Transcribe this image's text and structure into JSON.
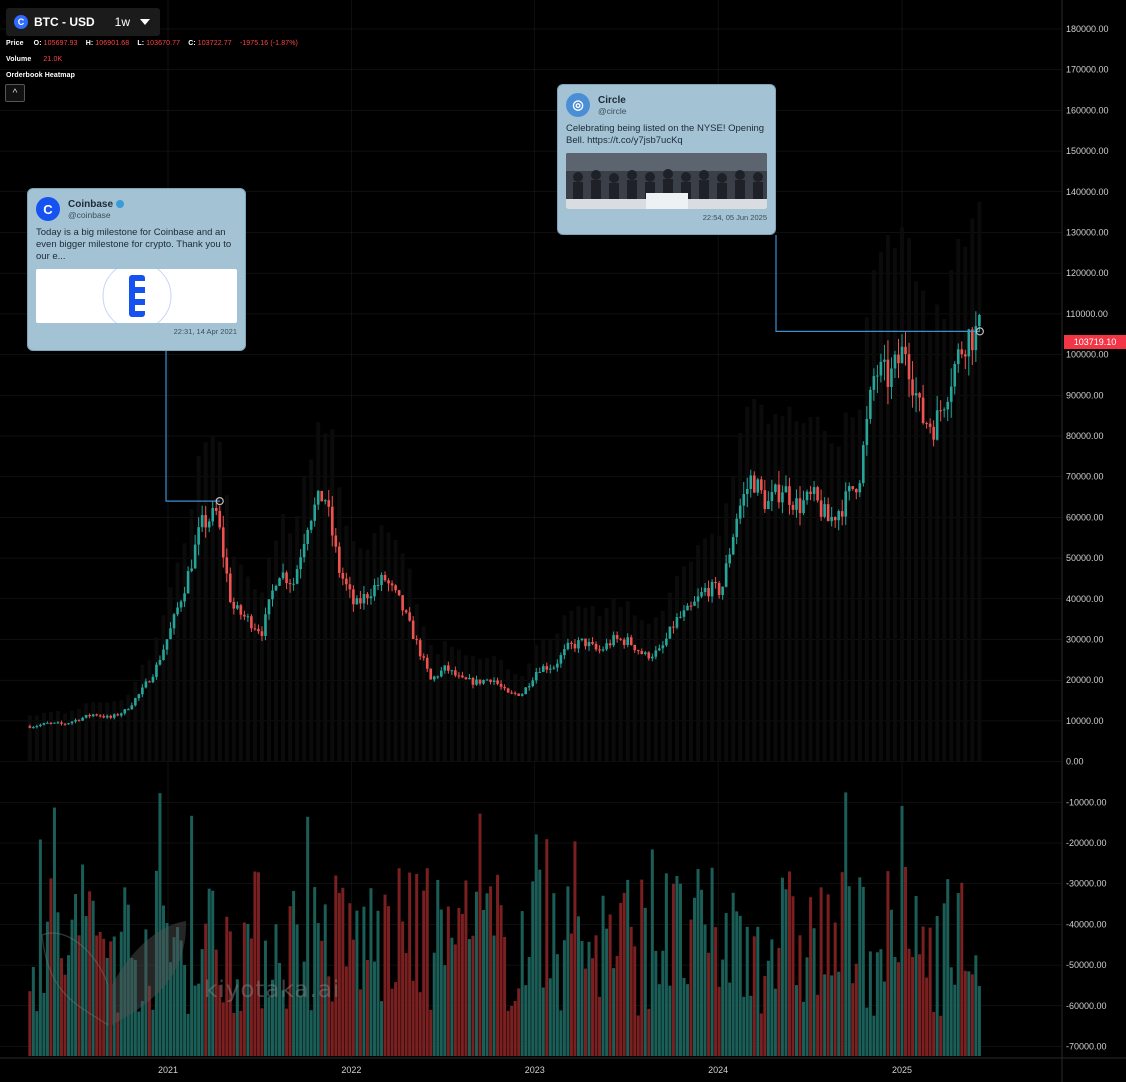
{
  "toolbar": {
    "symbol": "BTC - USD",
    "interval": "1w"
  },
  "legend": {
    "price_label": "Price",
    "o_label": "O:",
    "o": "105697.93",
    "h_label": "H:",
    "h": "106901.68",
    "l_label": "L:",
    "l": "103670.77",
    "c_label": "C:",
    "c": "103722.77",
    "change": "-1975.16 (-1.87%)",
    "volume_label": "Volume",
    "volume": "21.0K",
    "heatmap_label": "Orderbook Heatmap",
    "collapse_glyph": "^"
  },
  "tweets": [
    {
      "name": "Coinbase",
      "handle": "@coinbase",
      "avatar_glyph": "C",
      "text": "Today is a big milestone for Coinbase and an even bigger milestone for crypto. Thank you to our e...",
      "time": "22:31, 14 Apr 2021"
    },
    {
      "name": "Circle",
      "handle": "@circle",
      "avatar_glyph": "◎",
      "text": "Celebrating being listed on the NYSE!  Opening Bell. https://t.co/y7jsb7ucKq",
      "time": "22:54, 05 Jun 2025"
    }
  ],
  "last_price_tag": "103719.10",
  "watermark": "kiyotaka.ai",
  "colors": {
    "up": "#26a69a",
    "down": "#ef5350",
    "line": "#3d8fd1",
    "grid": "#1e1e1e"
  },
  "chart_data": {
    "type": "candlestick",
    "title": "BTC - USD",
    "interval": "1w",
    "price_axis": {
      "ylim": [
        -70000,
        180000
      ],
      "ticks": [
        "180000.00",
        "170000.00",
        "160000.00",
        "150000.00",
        "140000.00",
        "130000.00",
        "120000.00",
        "110000.00",
        "100000.00",
        "90000.00",
        "80000.00",
        "70000.00",
        "60000.00",
        "50000.00",
        "40000.00",
        "30000.00",
        "20000.00",
        "10000.00",
        "0.00",
        "-10000.00",
        "-20000.00",
        "-30000.00",
        "-40000.00",
        "-50000.00",
        "-60000.00",
        "-70000.00"
      ]
    },
    "time_axis": {
      "ticks": [
        "2021",
        "2022",
        "2023",
        "2024",
        "2025"
      ]
    },
    "price_path": [
      [
        "2020-04",
        8700
      ],
      [
        "2020-05",
        9400
      ],
      [
        "2020-06",
        9200
      ],
      [
        "2020-07",
        10500
      ],
      [
        "2020-08",
        11700
      ],
      [
        "2020-09",
        10700
      ],
      [
        "2020-10",
        12500
      ],
      [
        "2020-11",
        17000
      ],
      [
        "2020-12",
        23000
      ],
      [
        "2021-01",
        33000
      ],
      [
        "2021-02",
        45000
      ],
      [
        "2021-03",
        58000
      ],
      [
        "2021-04",
        61000
      ],
      [
        "2021-05",
        38000
      ],
      [
        "2021-06",
        35000
      ],
      [
        "2021-07",
        32000
      ],
      [
        "2021-08",
        47000
      ],
      [
        "2021-09",
        44000
      ],
      [
        "2021-10",
        60000
      ],
      [
        "2021-11",
        66000
      ],
      [
        "2021-12",
        47000
      ],
      [
        "2022-01",
        38000
      ],
      [
        "2022-02",
        42000
      ],
      [
        "2022-03",
        45000
      ],
      [
        "2022-04",
        39000
      ],
      [
        "2022-05",
        30000
      ],
      [
        "2022-06",
        20000
      ],
      [
        "2022-07",
        23000
      ],
      [
        "2022-08",
        20000
      ],
      [
        "2022-09",
        19500
      ],
      [
        "2022-10",
        20500
      ],
      [
        "2022-11",
        16500
      ],
      [
        "2022-12",
        16800
      ],
      [
        "2023-01",
        23000
      ],
      [
        "2023-02",
        23500
      ],
      [
        "2023-03",
        28000
      ],
      [
        "2023-04",
        29500
      ],
      [
        "2023-05",
        27000
      ],
      [
        "2023-06",
        30000
      ],
      [
        "2023-07",
        29500
      ],
      [
        "2023-08",
        26000
      ],
      [
        "2023-09",
        27000
      ],
      [
        "2023-10",
        34500
      ],
      [
        "2023-11",
        37500
      ],
      [
        "2023-12",
        42500
      ],
      [
        "2024-01",
        42000
      ],
      [
        "2024-02",
        61000
      ],
      [
        "2024-03",
        70000
      ],
      [
        "2024-04",
        63000
      ],
      [
        "2024-05",
        67500
      ],
      [
        "2024-06",
        62700
      ],
      [
        "2024-07",
        65000
      ],
      [
        "2024-08",
        59000
      ],
      [
        "2024-09",
        63500
      ],
      [
        "2024-10",
        70000
      ],
      [
        "2024-11",
        96000
      ],
      [
        "2024-12",
        94000
      ],
      [
        "2025-01",
        102000
      ],
      [
        "2025-02",
        84500
      ],
      [
        "2025-03",
        82500
      ],
      [
        "2025-04",
        94500
      ],
      [
        "2025-05",
        104500
      ],
      [
        "2025-06",
        105700
      ]
    ],
    "events": [
      {
        "date": "2021-04-14",
        "price": 64000,
        "label": "Coinbase"
      },
      {
        "date": "2025-06-05",
        "price": 105700,
        "label": "Circle"
      }
    ],
    "last_price": 103719.1
  }
}
